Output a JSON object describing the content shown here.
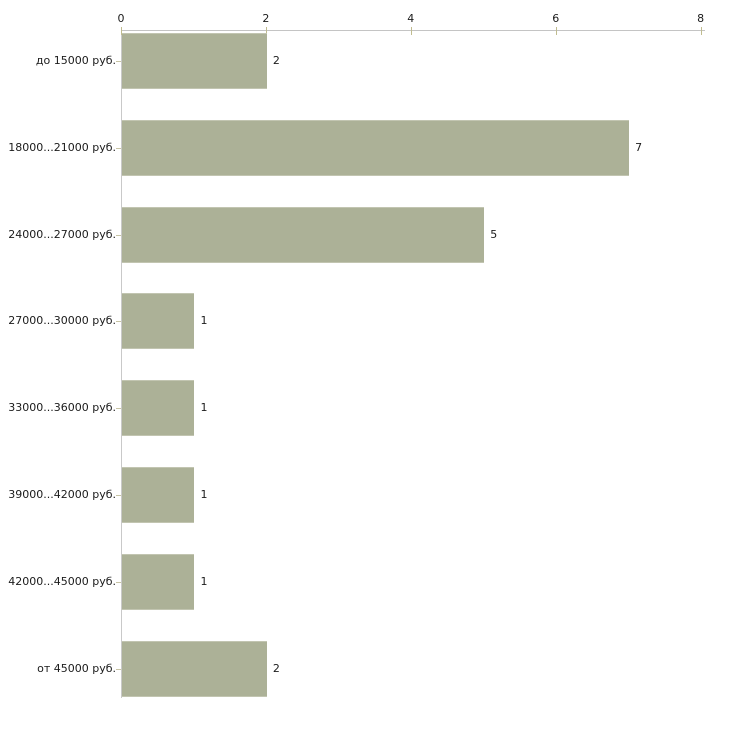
{
  "chart_data": {
    "type": "bar",
    "orientation": "horizontal",
    "title": "",
    "xlabel": "",
    "ylabel": "",
    "categories": [
      "до 15000 руб.",
      "18000...21000 руб.",
      "24000...27000 руб.",
      "27000...30000 руб.",
      "33000...36000 руб.",
      "39000...42000 руб.",
      "42000...45000 руб.",
      "от 45000 руб."
    ],
    "values": [
      2,
      7,
      5,
      1,
      1,
      1,
      1,
      2
    ],
    "value_labels": [
      "2",
      "7",
      "5",
      "1",
      "1",
      "1",
      "1",
      "2"
    ],
    "xlim": [
      0,
      8
    ],
    "x_ticks": [
      0,
      2,
      4,
      6,
      8
    ],
    "x_axis_position": "top",
    "grid": false,
    "legend": false,
    "colors": {
      "bar_fill": "#acb197",
      "bar_edge": "#c2c5b1",
      "axis_line": "#c4c4c4",
      "tick_mark": "#c0bc8f",
      "category_tick": "#c8c4a4",
      "text": "#1b1b1b",
      "background": "#ffffff"
    }
  }
}
